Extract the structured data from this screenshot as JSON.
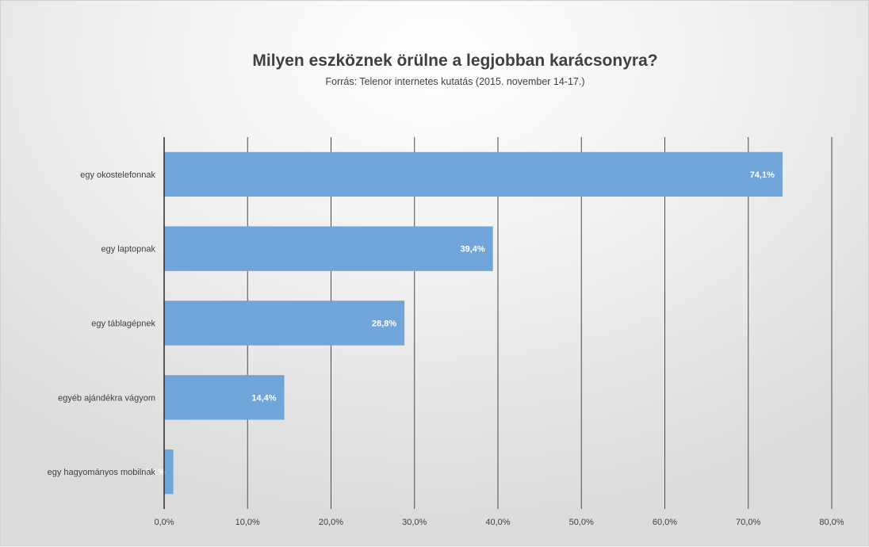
{
  "chart_data": {
    "type": "bar",
    "orientation": "horizontal",
    "title": "Milyen eszköznek örülne a legjobban karácsonyra?",
    "subtitle": "Forrás: Telenor internetes kutatás (2015. november  14-17.)",
    "categories": [
      "egy okostelefonnak",
      "egy laptopnak",
      "egy táblagépnek",
      "egyéb ajándékra vágyom",
      "egy hagyományos mobilnak"
    ],
    "values": [
      74.1,
      39.4,
      28.8,
      14.4,
      1.1
    ],
    "data_labels": [
      "74,1%",
      "39,4%",
      "28,8%",
      "14,4%",
      "1,1%"
    ],
    "xlim": [
      0,
      80
    ],
    "xticks": [
      0,
      10,
      20,
      30,
      40,
      50,
      60,
      70,
      80
    ],
    "xtick_labels": [
      "0,0%",
      "10,0%",
      "20,0%",
      "30,0%",
      "40,0%",
      "50,0%",
      "60,0%",
      "70,0%",
      "80,0%"
    ],
    "xlabel": "",
    "ylabel": "",
    "grid": "vertical",
    "bar_color": "#6fa5d8",
    "grid_color": "#4a4a4a",
    "axis_color": "#2b2b2b"
  }
}
